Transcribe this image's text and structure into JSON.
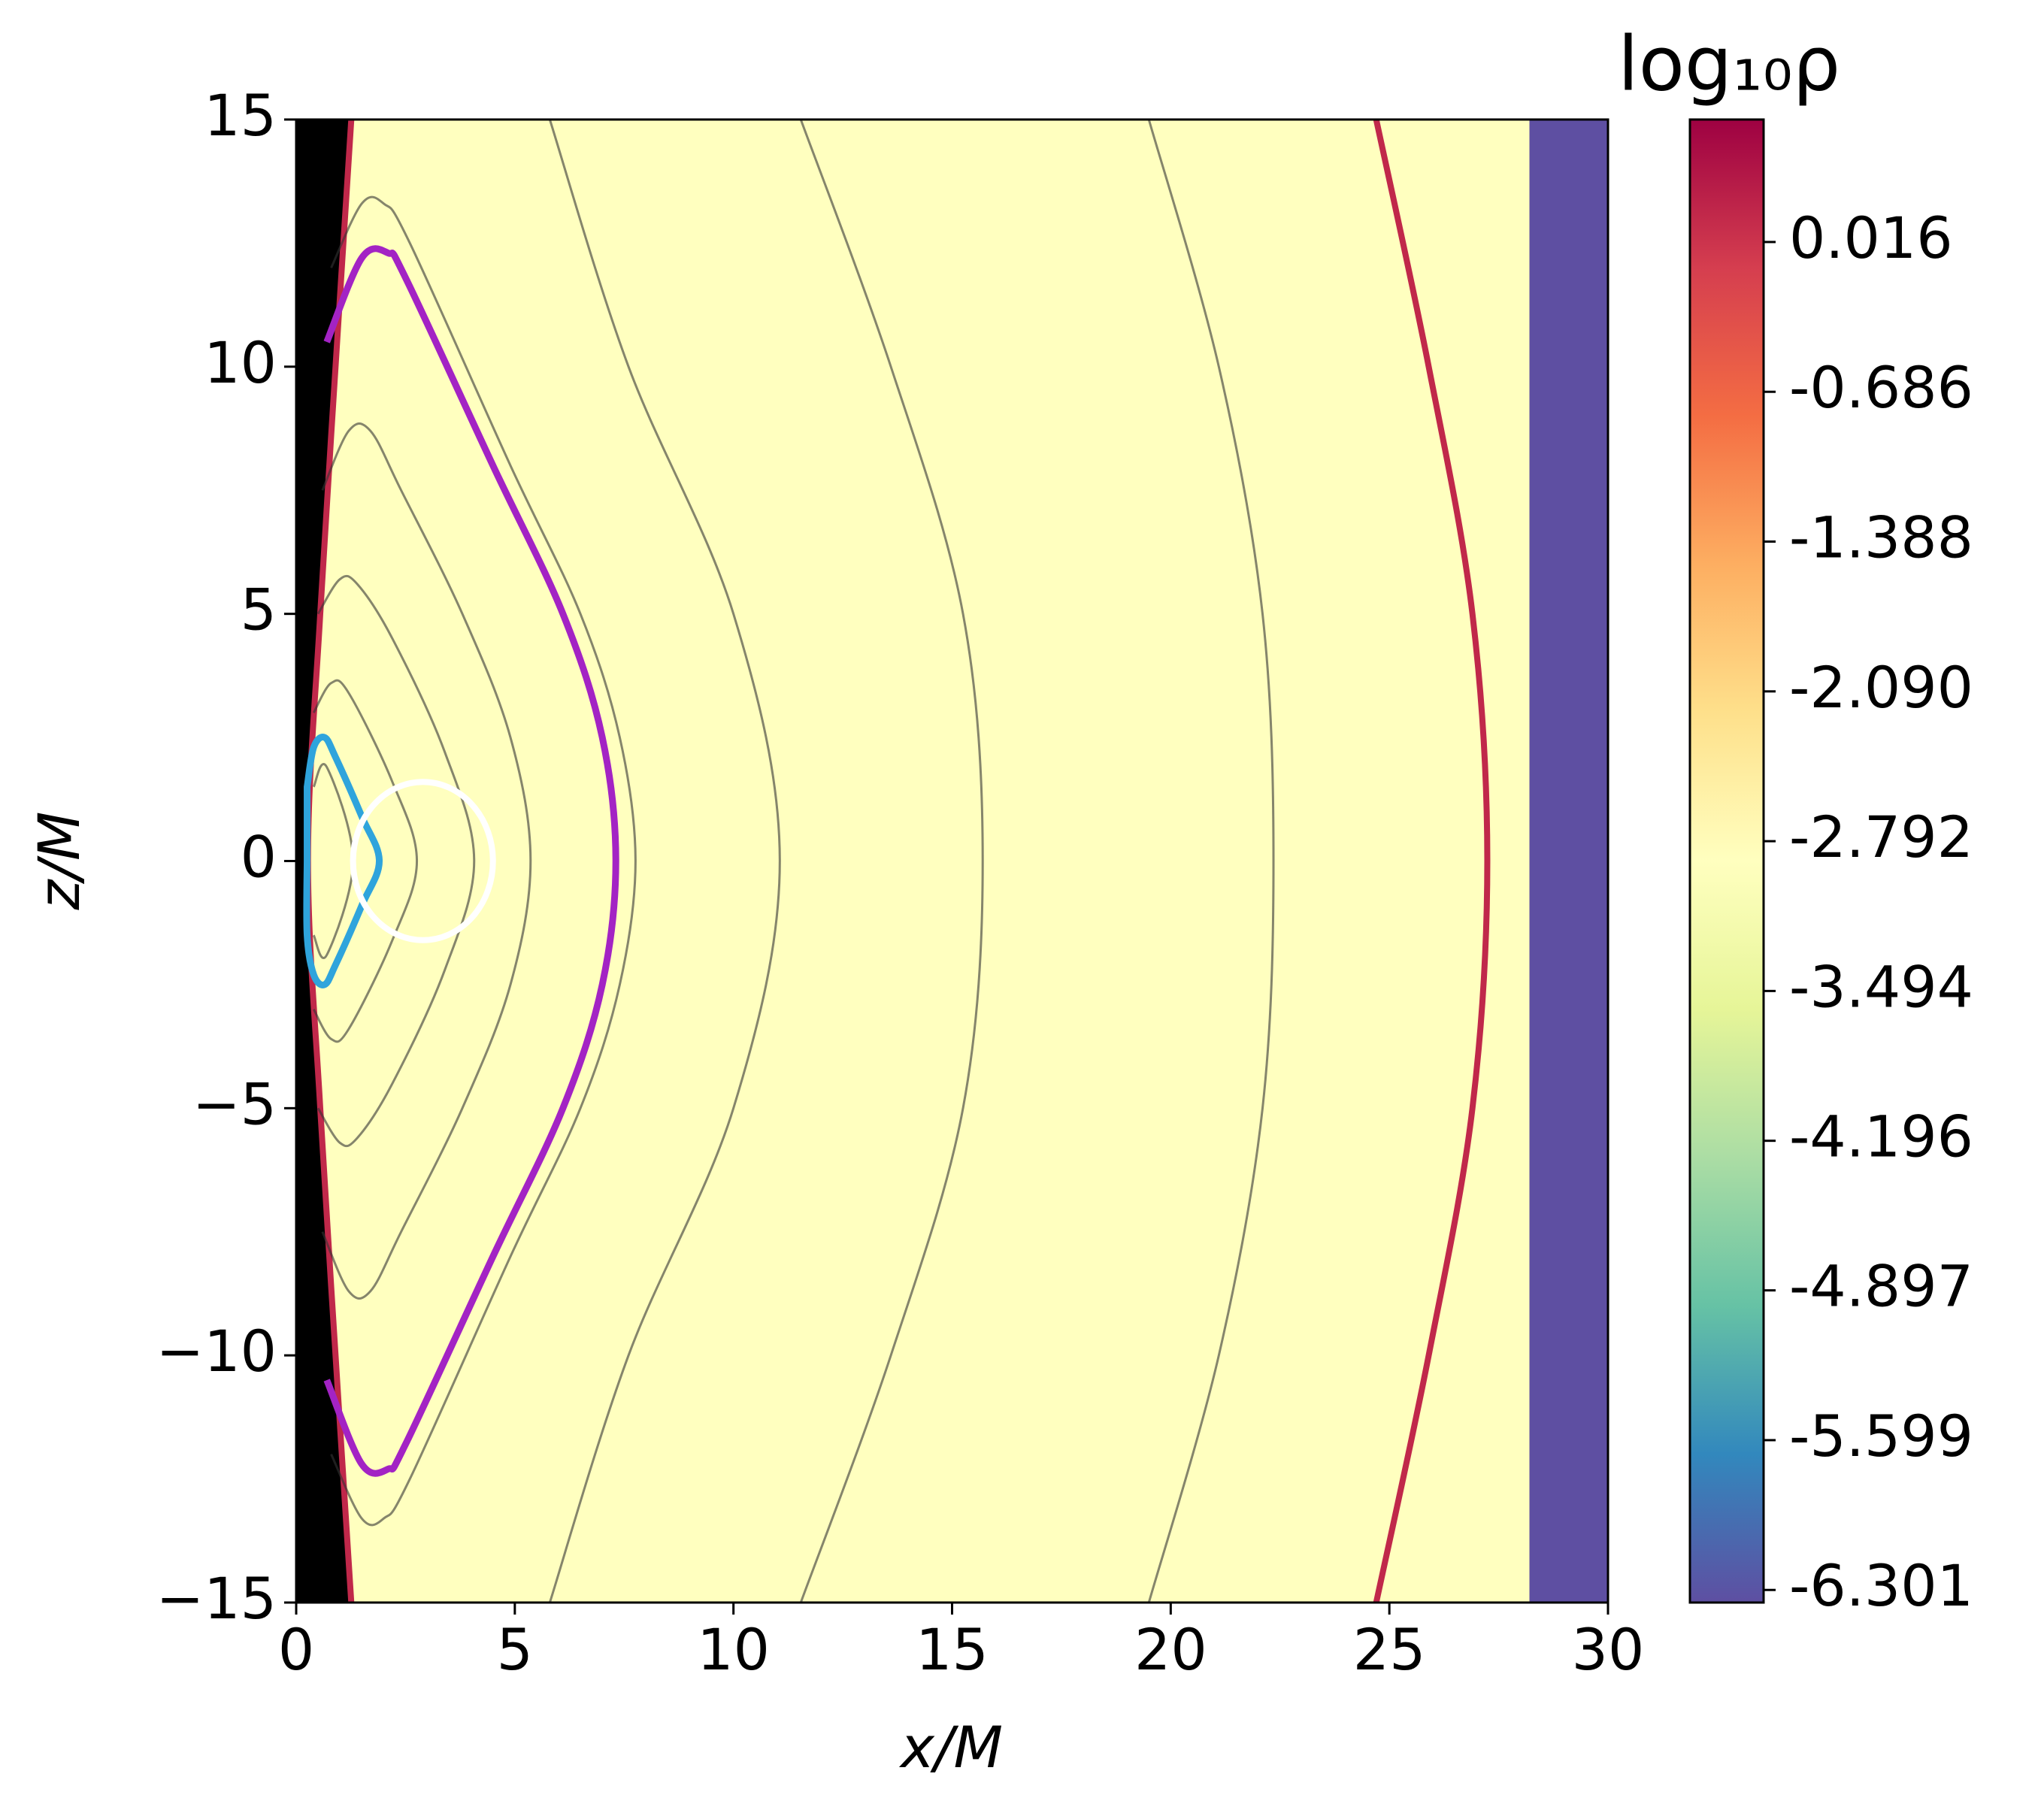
{
  "chart_data": {
    "type": "contour",
    "xlabel": "x/M",
    "ylabel": "z/M",
    "colorbar_label": "log₁₀ρ",
    "xlim": [
      0,
      30
    ],
    "ylim": [
      -15,
      15
    ],
    "xticks": [
      0,
      5,
      10,
      15,
      20,
      25,
      30
    ],
    "yticks": [
      {
        "value": -15,
        "label": "−15"
      },
      {
        "value": -10,
        "label": "−10"
      },
      {
        "value": -5,
        "label": "−5"
      },
      0,
      5,
      10,
      15
    ],
    "colormap": [
      "#5e4fa2",
      "#3288bd",
      "#66c2a5",
      "#abdda4",
      "#e6f598",
      "#ffffbf",
      "#fee08b",
      "#fdae61",
      "#f46d43",
      "#d53e4f",
      "#9e0142"
    ],
    "clim": [
      -6.36,
      0.59
    ],
    "cticks": [
      0.016,
      -0.686,
      -1.388,
      {
        "value": -2.09,
        "label": "-2.090"
      },
      -2.792,
      -3.494,
      -4.196,
      -4.897,
      -5.599,
      -6.301
    ],
    "horizon_color": "#000000",
    "contours": [
      {
        "color": "#c0284a",
        "width": 8,
        "x": [
          1.26,
          0.9,
          0.55,
          0.27,
          0.55,
          0.9,
          1.26
        ],
        "z": [
          15,
          10,
          5,
          0,
          -5,
          -10,
          -15
        ]
      },
      {
        "color": "#333333",
        "width": 3,
        "x": [
          5.8,
          7.6,
          10.0,
          11.06,
          10.0,
          7.6,
          5.8
        ],
        "z": [
          15,
          10,
          5,
          0,
          -5,
          -10,
          -15
        ]
      },
      {
        "color": "#333333",
        "width": 3,
        "x": [
          11.54,
          13.6,
          15.25,
          15.7,
          15.25,
          13.6,
          11.54
        ],
        "z": [
          15,
          10,
          5,
          0,
          -5,
          -10,
          -15
        ]
      },
      {
        "color": "#333333",
        "width": 3,
        "x": [
          19.5,
          21.1,
          22.1,
          22.35,
          22.1,
          21.1,
          19.5
        ],
        "z": [
          15,
          10,
          5,
          0,
          -5,
          -10,
          -15
        ]
      },
      {
        "color": "#c0284a",
        "width": 8,
        "x": [
          24.7,
          25.9,
          26.9,
          27.24,
          26.9,
          25.9,
          24.7
        ],
        "z": [
          15,
          10,
          5,
          0,
          -5,
          -10,
          -15
        ]
      },
      {
        "color": "#333333",
        "width": 3,
        "x": [
          0.8,
          1.5,
          2.0,
          2.6,
          4.9,
          6.5,
          7.4,
          7.76,
          7.4,
          6.5,
          4.9,
          2.6,
          2.0,
          1.5,
          0.8
        ],
        "z": [
          12,
          13.3,
          13.3,
          12.5,
          8,
          5,
          2.5,
          0,
          -2.5,
          -5,
          -8,
          -12.5,
          -13.3,
          -13.3,
          -12
        ]
      },
      {
        "color": "#a323c4",
        "width": 9,
        "x": [
          0.7,
          1.5,
          2.1,
          2.5,
          4.5,
          6.1,
          7.0,
          7.31,
          7.0,
          6.1,
          4.5,
          2.5,
          2.1,
          1.5,
          0.7
        ],
        "z": [
          10.5,
          12.2,
          12.3,
          11.8,
          8,
          5,
          2.5,
          0,
          -2.5,
          -5,
          -8,
          -11.8,
          -12.3,
          -12.2,
          -10.5
        ]
      },
      {
        "color": "#333333",
        "width": 3,
        "x": [
          0.6,
          1.2,
          1.7,
          2.4,
          3.8,
          4.9,
          5.36,
          4.9,
          3.8,
          2.4,
          1.7,
          1.2,
          0.6
        ],
        "z": [
          7.5,
          8.7,
          8.7,
          7.5,
          5,
          2.5,
          0,
          -2.5,
          -5,
          -7.5,
          -8.7,
          -8.7,
          -7.5
        ]
      },
      {
        "color": "#333333",
        "width": 3,
        "x": [
          0.5,
          1.0,
          1.4,
          2.2,
          3.4,
          4.07,
          3.4,
          2.2,
          1.4,
          1.0,
          0.5
        ],
        "z": [
          5,
          5.7,
          5.6,
          4.5,
          2.2,
          0,
          -2.2,
          -4.5,
          -5.6,
          -5.7,
          -5
        ]
      },
      {
        "color": "#333333",
        "width": 3,
        "x": [
          0.4,
          0.8,
          1.2,
          2.2,
          2.76,
          2.2,
          1.2,
          0.8,
          0.4
        ],
        "z": [
          3,
          3.6,
          3.4,
          1.6,
          0,
          -1.6,
          -3.4,
          -3.6,
          -3
        ]
      },
      {
        "color": "#333333",
        "width": 3,
        "x": [
          0.4,
          0.7,
          1.3,
          0.7,
          0.4
        ],
        "z": [
          1.5,
          1.9,
          0,
          -1.9,
          -1.5
        ]
      },
      {
        "color": "#2fa4dc",
        "width": 9,
        "closed": true,
        "x": [
          0.25,
          0.4,
          0.65,
          0.9,
          1.5,
          1.9,
          1.5,
          0.9,
          0.65,
          0.4,
          0.25,
          0.25
        ],
        "z": [
          1.5,
          2.3,
          2.5,
          2.1,
          0.9,
          0,
          -0.9,
          -2.1,
          -2.5,
          -2.3,
          -1.5,
          0
        ]
      }
    ],
    "circle": {
      "x": 2.9,
      "z": 0,
      "r": 1.6,
      "color": "#ffffff"
    }
  }
}
